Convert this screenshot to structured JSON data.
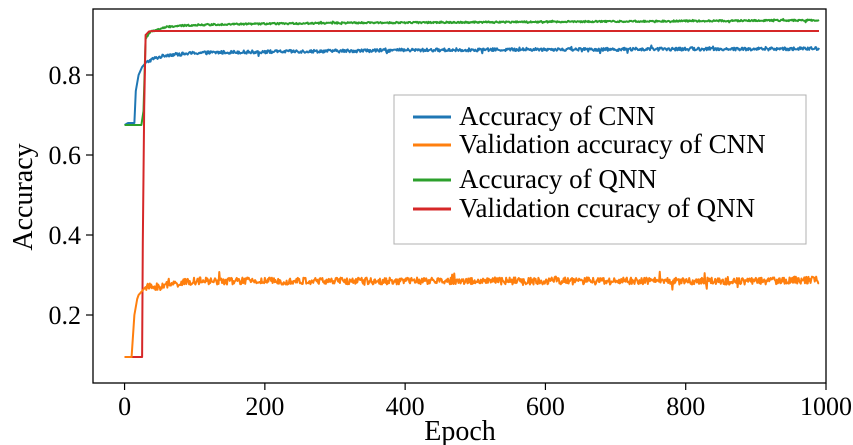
{
  "chart_data": {
    "type": "line",
    "title": "",
    "xlabel": "Epoch",
    "ylabel": "Accuracy",
    "xlim": [
      -45,
      1000
    ],
    "ylim": [
      0.03,
      0.965
    ],
    "xticks": [
      0,
      200,
      400,
      600,
      800,
      1000
    ],
    "yticks": [
      0.2,
      0.4,
      0.6,
      0.8
    ],
    "xtick_labels": [
      "0",
      "200",
      "400",
      "600",
      "800",
      "1000"
    ],
    "ytick_labels": [
      "0.2",
      "0.4",
      "0.6",
      "0.8"
    ],
    "grid": false,
    "legend_position": "center-right",
    "series": [
      {
        "name": "Accuracy of CNN",
        "color": "#1f77b4",
        "x": [
          0,
          5,
          10,
          14,
          16,
          18,
          20,
          25,
          30,
          35,
          40,
          50,
          60,
          80,
          100,
          150,
          200,
          300,
          400,
          500,
          600,
          700,
          800,
          900,
          990
        ],
        "y": [
          0.675,
          0.68,
          0.68,
          0.68,
          0.76,
          0.78,
          0.8,
          0.82,
          0.83,
          0.835,
          0.84,
          0.845,
          0.85,
          0.852,
          0.855,
          0.857,
          0.858,
          0.86,
          0.862,
          0.863,
          0.864,
          0.864,
          0.865,
          0.865,
          0.866
        ],
        "noise": 0.004
      },
      {
        "name": "Validation accuracy of CNN",
        "color": "#ff7f0e",
        "x": [
          0,
          5,
          10,
          14,
          18,
          20,
          25,
          30,
          40,
          50,
          60,
          80,
          100,
          150,
          200,
          300,
          400,
          500,
          600,
          700,
          800,
          900,
          990
        ],
        "y": [
          0.095,
          0.095,
          0.095,
          0.2,
          0.24,
          0.25,
          0.26,
          0.27,
          0.27,
          0.27,
          0.275,
          0.28,
          0.285,
          0.285,
          0.285,
          0.285,
          0.285,
          0.285,
          0.285,
          0.285,
          0.285,
          0.285,
          0.288
        ],
        "noise": 0.009
      },
      {
        "name": "Accuracy of QNN",
        "color": "#2ca02c",
        "x": [
          0,
          5,
          10,
          14,
          18,
          20,
          24,
          27,
          30,
          35,
          40,
          50,
          60,
          80,
          100,
          150,
          200,
          300,
          400,
          500,
          600,
          700,
          800,
          900,
          990
        ],
        "y": [
          0.675,
          0.675,
          0.675,
          0.675,
          0.675,
          0.675,
          0.675,
          0.71,
          0.89,
          0.905,
          0.91,
          0.915,
          0.92,
          0.923,
          0.925,
          0.927,
          0.928,
          0.93,
          0.931,
          0.932,
          0.933,
          0.934,
          0.935,
          0.936,
          0.937
        ],
        "noise": 0.002
      },
      {
        "name": "Validation ccuracy of QNN",
        "color": "#d62728",
        "x": [
          0,
          5,
          10,
          15,
          20,
          25,
          26,
          28,
          30,
          35,
          40,
          60,
          100,
          200,
          300,
          400,
          500,
          600,
          700,
          800,
          900,
          990
        ],
        "y": [
          0.095,
          0.095,
          0.095,
          0.095,
          0.095,
          0.095,
          0.38,
          0.72,
          0.9,
          0.909,
          0.91,
          0.91,
          0.91,
          0.91,
          0.91,
          0.91,
          0.91,
          0.91,
          0.91,
          0.91,
          0.91,
          0.91
        ],
        "noise": 0.0
      }
    ]
  }
}
